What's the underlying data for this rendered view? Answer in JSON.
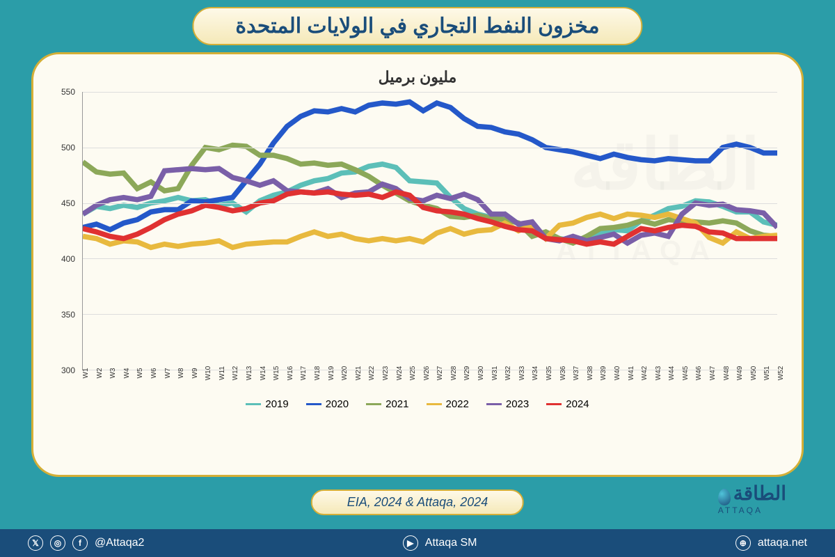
{
  "title": "مخزون النفط التجاري في الولايات المتحدة",
  "subtitle": "مليون برميل",
  "source": "EIA, 2024 & Attaqa, 2024",
  "logo": {
    "ar": "الطاقة",
    "en": "ATTAQA"
  },
  "footer": {
    "handle1": "@Attaqa2",
    "handle2": "Attaqa SM",
    "site": "attaqa.net"
  },
  "chart": {
    "type": "line",
    "ylim": [
      300,
      550
    ],
    "yticks": [
      300,
      350,
      400,
      450,
      500,
      550
    ],
    "xlabels": [
      "W1",
      "W2",
      "W3",
      "W4",
      "W5",
      "W6",
      "W7",
      "W8",
      "W9",
      "W10",
      "W11",
      "W12",
      "W13",
      "W14",
      "W15",
      "W16",
      "W17",
      "W18",
      "W19",
      "W20",
      "W21",
      "W22",
      "W23",
      "W24",
      "W25",
      "W26",
      "W27",
      "W28",
      "W29",
      "W30",
      "W31",
      "W32",
      "W33",
      "W34",
      "W35",
      "W36",
      "W37",
      "W38",
      "W39",
      "W40",
      "W41",
      "W42",
      "W43",
      "W44",
      "W45",
      "W46",
      "W47",
      "W48",
      "W49",
      "W50",
      "W51",
      "W52"
    ],
    "grid_color": "#dddddd",
    "background_color": "#fdfbf2",
    "axis_color": "#999999",
    "line_width": 2.5,
    "series": [
      {
        "name": "2019",
        "color": "#5cbfb8",
        "values": [
          440,
          447,
          445,
          448,
          446,
          450,
          452,
          455,
          452,
          453,
          448,
          450,
          442,
          452,
          457,
          460,
          466,
          470,
          472,
          477,
          478,
          483,
          485,
          482,
          470,
          469,
          468,
          455,
          445,
          440,
          437,
          440,
          431,
          427,
          420,
          418,
          416,
          419,
          423,
          426,
          425,
          434,
          439,
          445,
          447,
          452,
          451,
          447,
          442,
          442,
          433,
          430
        ]
      },
      {
        "name": "2020",
        "color": "#2458c9",
        "values": [
          428,
          431,
          426,
          432,
          435,
          442,
          444,
          444,
          452,
          451,
          453,
          455,
          470,
          485,
          504,
          519,
          528,
          533,
          532,
          535,
          532,
          538,
          540,
          539,
          541,
          533,
          540,
          536,
          526,
          519,
          518,
          514,
          512,
          507,
          500,
          498,
          496,
          493,
          490,
          494,
          491,
          489,
          488,
          490,
          489,
          488,
          488,
          500,
          503,
          500,
          495,
          495
        ]
      },
      {
        "name": "2021",
        "color": "#8ca859",
        "values": [
          487,
          478,
          476,
          477,
          463,
          469,
          461,
          463,
          484,
          500,
          498,
          502,
          501,
          493,
          493,
          490,
          485,
          486,
          484,
          485,
          480,
          474,
          466,
          459,
          452,
          448,
          445,
          438,
          437,
          439,
          436,
          435,
          432,
          420,
          424,
          418,
          414,
          420,
          427,
          428,
          430,
          434,
          431,
          435,
          434,
          433,
          432,
          434,
          432,
          425,
          421,
          420
        ]
      },
      {
        "name": "2022",
        "color": "#e8b93e",
        "values": [
          420,
          418,
          413,
          416,
          415,
          410,
          413,
          411,
          413,
          414,
          416,
          410,
          413,
          414,
          415,
          415,
          420,
          424,
          420,
          422,
          418,
          416,
          418,
          416,
          418,
          415,
          423,
          427,
          422,
          425,
          426,
          432,
          425,
          430,
          418,
          430,
          432,
          437,
          440,
          436,
          440,
          439,
          437,
          440,
          436,
          432,
          419,
          414,
          424,
          418,
          420,
          421
        ]
      },
      {
        "name": "2023",
        "color": "#7a5fa8",
        "values": [
          440,
          448,
          453,
          455,
          453,
          456,
          479,
          480,
          481,
          480,
          481,
          473,
          470,
          466,
          470,
          461,
          460,
          459,
          463,
          455,
          459,
          460,
          467,
          463,
          454,
          452,
          457,
          454,
          458,
          453,
          440,
          440,
          431,
          433,
          418,
          416,
          420,
          416,
          419,
          422,
          414,
          421,
          423,
          420,
          440,
          450,
          448,
          449,
          444,
          443,
          441,
          428
        ]
      },
      {
        "name": "2024",
        "color": "#e03131",
        "values": [
          427,
          424,
          420,
          418,
          422,
          428,
          435,
          440,
          443,
          448,
          446,
          443,
          445,
          450,
          452,
          458,
          460,
          459,
          460,
          458,
          457,
          458,
          455,
          460,
          457,
          446,
          443,
          442,
          440,
          436,
          433,
          429,
          426,
          425,
          418,
          417,
          416,
          413,
          415,
          413,
          420,
          427,
          425,
          428,
          430,
          429,
          424,
          423,
          418,
          418,
          418,
          418
        ]
      }
    ]
  }
}
